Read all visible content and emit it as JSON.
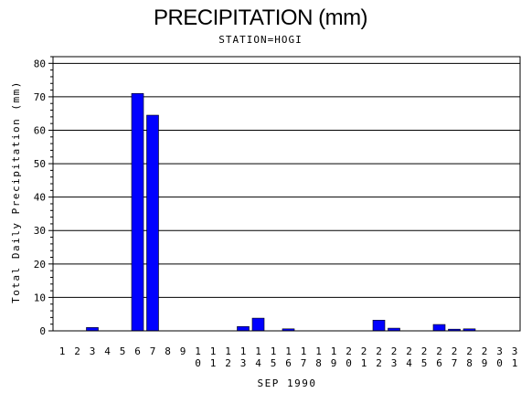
{
  "chart_data": {
    "type": "bar",
    "title": "PRECIPITATION (mm)",
    "subtitle": "STATION=HOGI",
    "xlabel": "SEP 1990",
    "ylabel": "Total Daily Precipitation (mm)",
    "ylim": [
      0,
      82
    ],
    "yticks": [
      0,
      10,
      20,
      30,
      40,
      50,
      60,
      70,
      80
    ],
    "grid": true,
    "bar_color": "#0000ff",
    "categories": [
      "1",
      "2",
      "3",
      "4",
      "5",
      "6",
      "7",
      "8",
      "9",
      "10",
      "11",
      "12",
      "13",
      "14",
      "15",
      "16",
      "17",
      "18",
      "19",
      "20",
      "21",
      "22",
      "23",
      "24",
      "25",
      "26",
      "27",
      "28",
      "29",
      "30",
      "31"
    ],
    "values": [
      0,
      0,
      1.0,
      0,
      0,
      71.0,
      64.5,
      0,
      0,
      0,
      0,
      0,
      1.3,
      3.8,
      0,
      0.6,
      0,
      0,
      0,
      0,
      0,
      3.2,
      0.8,
      0,
      0,
      1.9,
      0.5,
      0.6,
      0,
      0,
      0
    ]
  }
}
